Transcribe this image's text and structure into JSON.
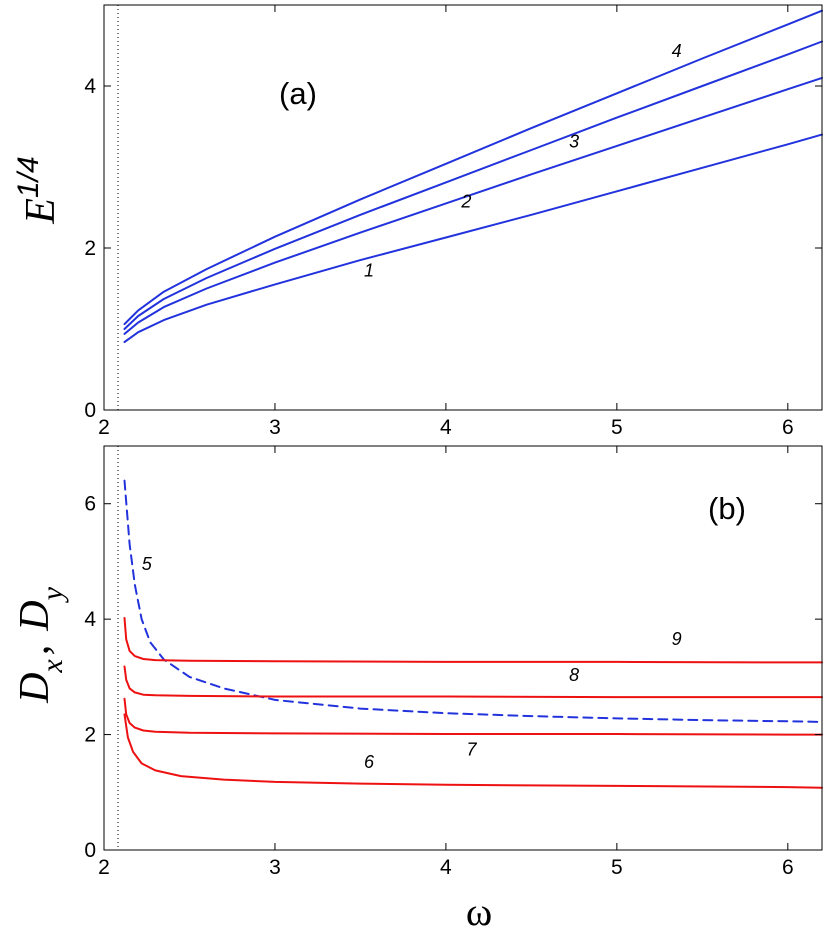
{
  "chart_data": [
    {
      "type": "line",
      "panel_label": "(a)",
      "ylabel": "E",
      "ylabel_superscript": "1/4",
      "xlim": [
        2.0,
        6.2
      ],
      "ylim": [
        0,
        5
      ],
      "xticks": [
        "2",
        "3",
        "4",
        "5",
        "6"
      ],
      "yticks": [
        "0",
        "2",
        "4"
      ],
      "vertical_dotted_line_x": 2.08,
      "series": [
        {
          "name": "1",
          "color": "#2233dd",
          "style": "solid",
          "x": [
            2.12,
            2.2,
            2.35,
            2.6,
            3.0,
            3.5,
            4.0,
            4.5,
            5.0,
            5.5,
            6.0,
            6.2
          ],
          "y": [
            0.84,
            0.96,
            1.11,
            1.3,
            1.55,
            1.85,
            2.13,
            2.41,
            2.7,
            2.99,
            3.28,
            3.4
          ]
        },
        {
          "name": "2",
          "color": "#2233dd",
          "style": "solid",
          "x": [
            2.12,
            2.2,
            2.35,
            2.6,
            3.0,
            3.5,
            4.0,
            4.5,
            5.0,
            5.5,
            6.0,
            6.2
          ],
          "y": [
            0.94,
            1.08,
            1.27,
            1.5,
            1.82,
            2.19,
            2.55,
            2.91,
            3.26,
            3.61,
            3.96,
            4.1
          ]
        },
        {
          "name": "3",
          "color": "#2233dd",
          "style": "solid",
          "x": [
            2.12,
            2.2,
            2.35,
            2.6,
            3.0,
            3.5,
            4.0,
            4.5,
            5.0,
            5.5,
            6.0,
            6.2
          ],
          "y": [
            1.0,
            1.16,
            1.37,
            1.63,
            1.99,
            2.41,
            2.81,
            3.21,
            3.61,
            4.0,
            4.39,
            4.55
          ]
        },
        {
          "name": "4",
          "color": "#2233dd",
          "style": "solid",
          "x": [
            2.12,
            2.2,
            2.35,
            2.6,
            3.0,
            3.5,
            4.0,
            4.5,
            5.0,
            5.5,
            6.0,
            6.2
          ],
          "y": [
            1.06,
            1.23,
            1.46,
            1.74,
            2.14,
            2.6,
            3.04,
            3.48,
            3.91,
            4.34,
            4.76,
            4.93
          ]
        }
      ],
      "curve_labels": [
        {
          "text": "1",
          "x": 3.55,
          "y": 1.65
        },
        {
          "text": "2",
          "x": 4.12,
          "y": 2.5
        },
        {
          "text": "3",
          "x": 4.75,
          "y": 3.24
        },
        {
          "text": "4",
          "x": 5.35,
          "y": 4.36
        }
      ]
    },
    {
      "type": "line",
      "panel_label": "(b)",
      "ylabel": "D_x , D_y",
      "ylabel_main_1": "D",
      "ylabel_sub_1": "x",
      "ylabel_sep": ",",
      "ylabel_main_2": "D",
      "ylabel_sub_2": "y",
      "xlabel": "ω",
      "xlim": [
        2.0,
        6.2
      ],
      "ylim": [
        0,
        7
      ],
      "xticks": [
        "2",
        "3",
        "4",
        "5",
        "6"
      ],
      "yticks": [
        "0",
        "2",
        "4",
        "6"
      ],
      "vertical_dotted_line_x": 2.08,
      "series": [
        {
          "name": "5",
          "color": "#2233dd",
          "style": "dashed",
          "x": [
            2.12,
            2.15,
            2.18,
            2.22,
            2.27,
            2.35,
            2.5,
            2.7,
            3.0,
            3.5,
            4.0,
            4.5,
            5.0,
            5.5,
            6.0,
            6.2
          ],
          "y": [
            6.4,
            5.3,
            4.6,
            4.0,
            3.6,
            3.3,
            3.0,
            2.8,
            2.6,
            2.45,
            2.37,
            2.32,
            2.28,
            2.25,
            2.23,
            2.22
          ]
        },
        {
          "name": "6",
          "color": "#ee1111",
          "style": "solid",
          "x": [
            2.12,
            2.14,
            2.17,
            2.22,
            2.3,
            2.45,
            2.7,
            3.0,
            3.5,
            4.0,
            5.0,
            6.0,
            6.2
          ],
          "y": [
            2.35,
            1.95,
            1.7,
            1.5,
            1.38,
            1.28,
            1.22,
            1.18,
            1.15,
            1.13,
            1.11,
            1.09,
            1.08
          ]
        },
        {
          "name": "7",
          "color": "#ee1111",
          "style": "solid",
          "x": [
            2.12,
            2.13,
            2.15,
            2.18,
            2.23,
            2.3,
            2.5,
            3.0,
            4.0,
            5.0,
            6.0,
            6.2
          ],
          "y": [
            2.62,
            2.35,
            2.2,
            2.12,
            2.07,
            2.05,
            2.03,
            2.02,
            2.01,
            2.01,
            2.0,
            2.0
          ]
        },
        {
          "name": "8",
          "color": "#ee1111",
          "style": "solid",
          "x": [
            2.12,
            2.13,
            2.15,
            2.18,
            2.23,
            2.3,
            2.5,
            3.0,
            4.0,
            5.0,
            6.0,
            6.2
          ],
          "y": [
            3.18,
            2.95,
            2.8,
            2.73,
            2.69,
            2.68,
            2.67,
            2.66,
            2.66,
            2.65,
            2.65,
            2.65
          ]
        },
        {
          "name": "9",
          "color": "#ee1111",
          "style": "solid",
          "x": [
            2.12,
            2.13,
            2.15,
            2.18,
            2.23,
            2.3,
            2.5,
            3.0,
            4.0,
            5.0,
            6.0,
            6.2
          ],
          "y": [
            4.02,
            3.65,
            3.45,
            3.36,
            3.31,
            3.29,
            3.28,
            3.27,
            3.26,
            3.26,
            3.25,
            3.25
          ]
        }
      ],
      "curve_labels": [
        {
          "text": "5",
          "x": 2.25,
          "y": 4.85
        },
        {
          "text": "6",
          "x": 3.55,
          "y": 1.42
        },
        {
          "text": "7",
          "x": 4.15,
          "y": 1.64
        },
        {
          "text": "8",
          "x": 4.75,
          "y": 2.93
        },
        {
          "text": "9",
          "x": 5.35,
          "y": 3.55
        }
      ]
    }
  ]
}
